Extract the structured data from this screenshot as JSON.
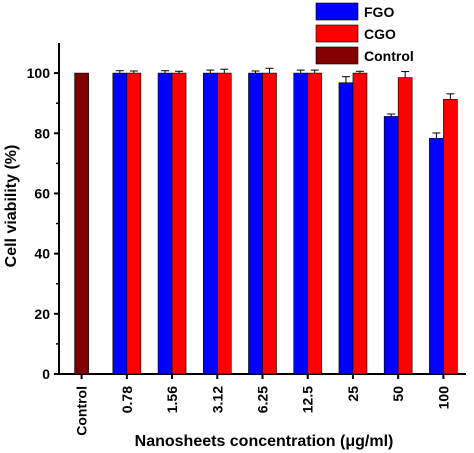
{
  "chart_data": {
    "type": "bar",
    "categories": [
      "Control",
      "0.78",
      "1.56",
      "3.12",
      "6.25",
      "12.5",
      "25",
      "50",
      "100"
    ],
    "series": [
      {
        "name": "FGO",
        "color": "#0000ff",
        "values": [
          null,
          100,
          100,
          100,
          100,
          100,
          96.8,
          85.6,
          78.3
        ],
        "errors": [
          null,
          0.8,
          0.8,
          1.0,
          0.7,
          1.0,
          2.0,
          0.8,
          1.8
        ]
      },
      {
        "name": "CGO",
        "color": "#ff0000",
        "values": [
          null,
          100,
          100,
          100,
          100,
          100,
          100,
          98.5,
          91.3
        ],
        "errors": [
          null,
          0.7,
          0.6,
          1.3,
          1.6,
          1.0,
          0.6,
          2.0,
          1.8
        ]
      },
      {
        "name": "Control",
        "color": "#800000",
        "values": [
          100,
          null,
          null,
          null,
          null,
          null,
          null,
          null,
          null
        ],
        "errors": [
          null,
          null,
          null,
          null,
          null,
          null,
          null,
          null,
          null
        ]
      }
    ],
    "xlabel": "Nanosheets concentration (μg/ml)",
    "ylabel": "Cell viability (%)",
    "ylim": [
      0,
      110
    ],
    "yticks": [
      0,
      20,
      40,
      60,
      80,
      100
    ],
    "legend_placement": "top-right",
    "grid": false
  }
}
